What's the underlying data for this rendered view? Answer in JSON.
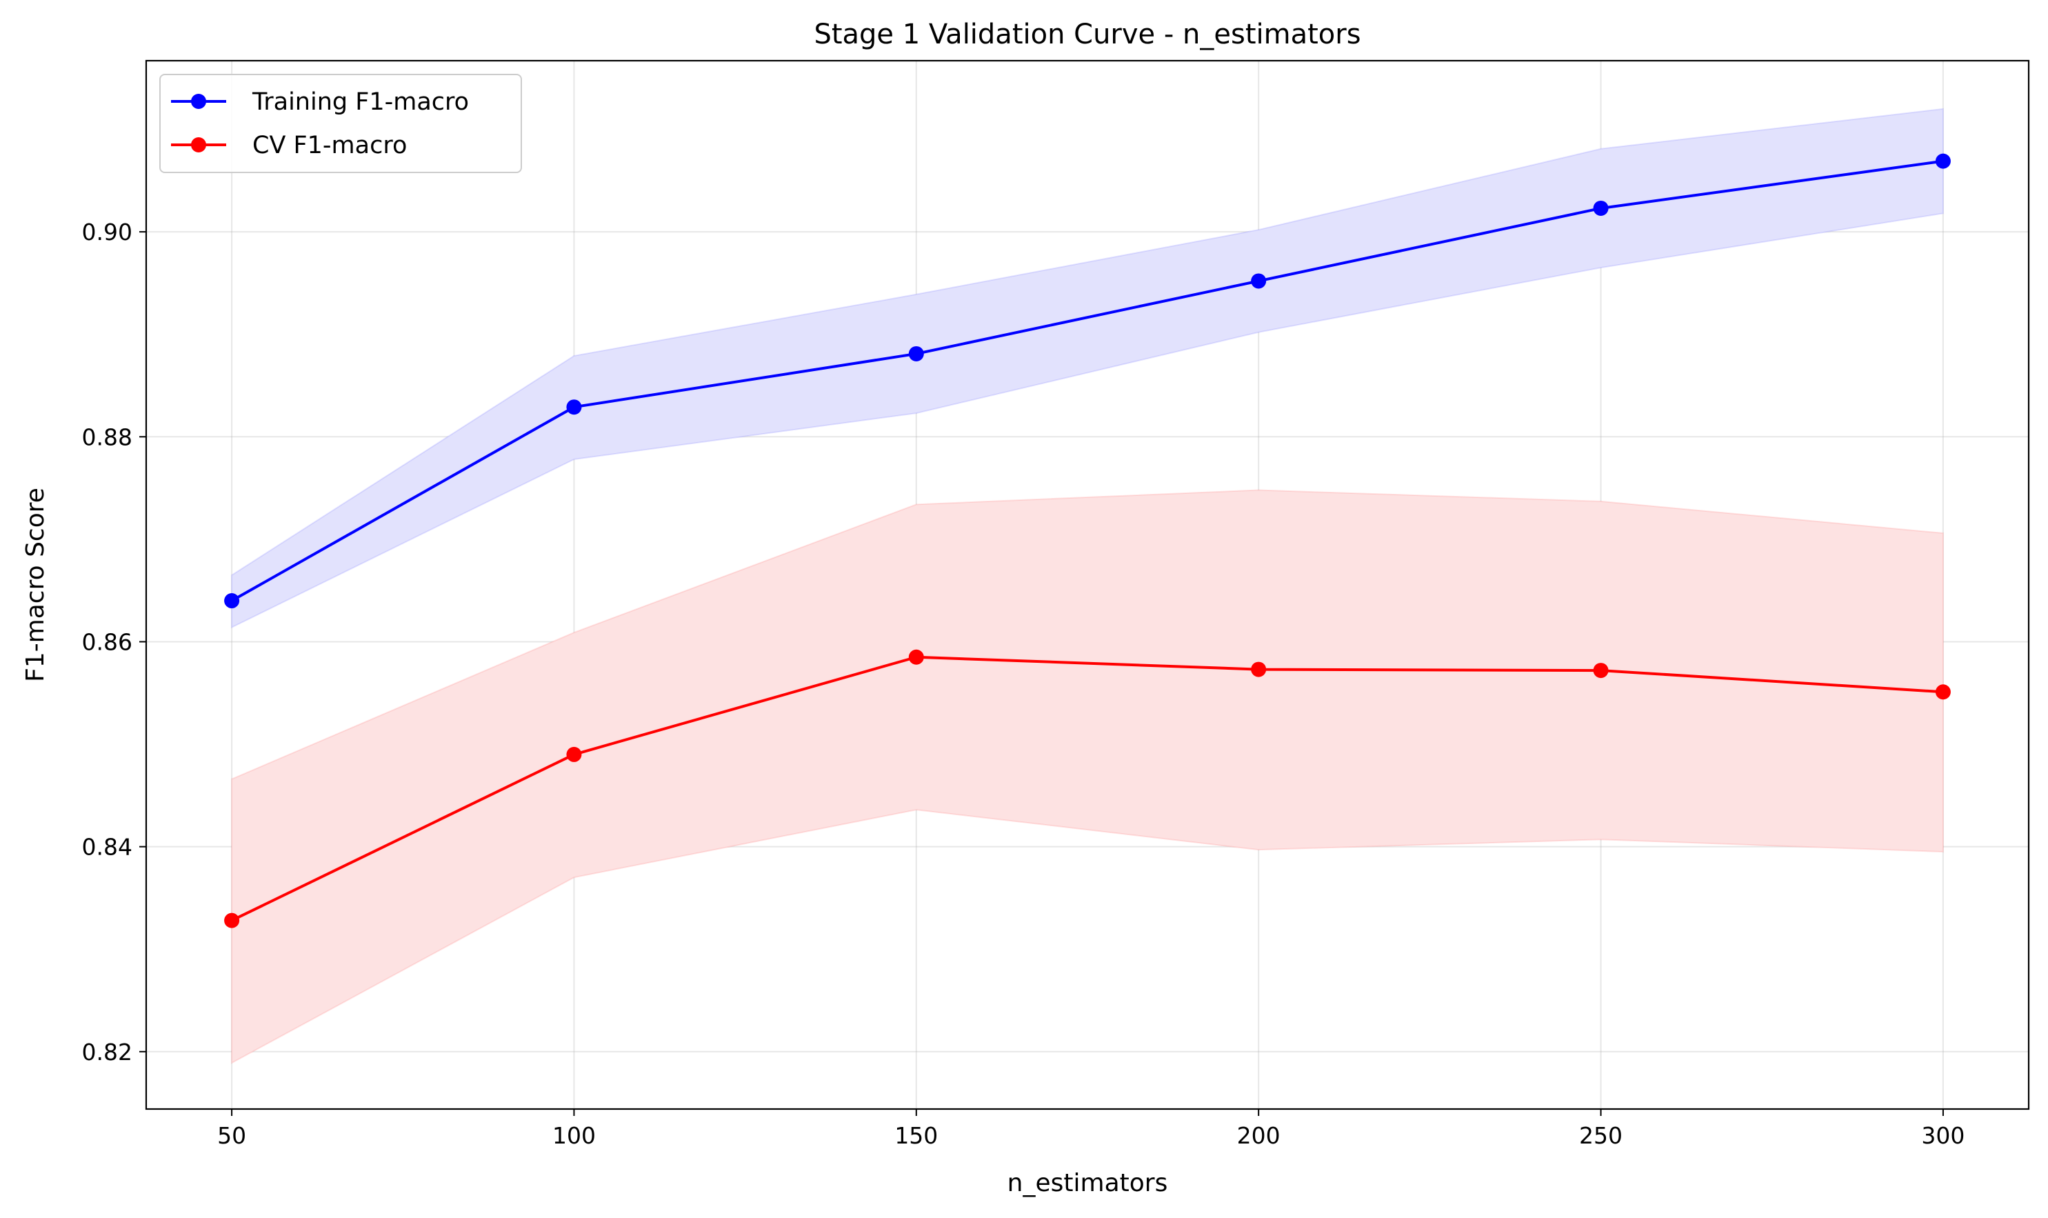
{
  "chart_data": {
    "type": "line",
    "title": "Stage 1 Validation Curve - n_estimators",
    "xlabel": "n_estimators",
    "ylabel": "F1-macro Score",
    "x": [
      50,
      100,
      150,
      200,
      250,
      300
    ],
    "xticks": [
      "50",
      "100",
      "150",
      "200",
      "250",
      "300"
    ],
    "yticks": [
      "0.82",
      "0.84",
      "0.86",
      "0.88",
      "0.90"
    ],
    "xlim": [
      37.5,
      312.5
    ],
    "ylim": [
      0.8144,
      0.9167
    ],
    "grid": true,
    "legend_position": "upper left",
    "series": [
      {
        "name": "Training F1-macro",
        "color": "#0000ff",
        "band_color": "#e2e2fd",
        "values": [
          0.864,
          0.8829,
          0.8881,
          0.8952,
          0.9023,
          0.9069
        ],
        "upper": [
          0.8665,
          0.8879,
          0.8939,
          0.9002,
          0.9081,
          0.912
        ],
        "lower": [
          0.8614,
          0.8778,
          0.8823,
          0.8902,
          0.8965,
          0.9018
        ]
      },
      {
        "name": "CV F1-macro",
        "color": "#ff0000",
        "band_color": "#fde2e2",
        "values": [
          0.8328,
          0.849,
          0.8585,
          0.8573,
          0.8572,
          0.8551
        ],
        "upper": [
          0.8466,
          0.8609,
          0.8734,
          0.8748,
          0.8737,
          0.8706
        ],
        "lower": [
          0.8189,
          0.837,
          0.8436,
          0.8397,
          0.8407,
          0.8395
        ]
      }
    ]
  }
}
